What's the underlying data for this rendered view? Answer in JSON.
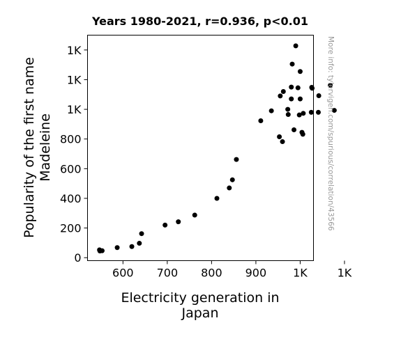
{
  "chart_data": {
    "type": "scatter",
    "title": "Years 1980-2021, r=0.936, p<0.01",
    "xlabel_lines": [
      "Electricity generation in",
      "Japan"
    ],
    "ylabel_lines": [
      "Popularity of the first name",
      "Madeleine"
    ],
    "xlim": [
      520,
      1030
    ],
    "ylim": [
      -20,
      1500
    ],
    "x_ticks": [
      {
        "value": 600,
        "label": "600"
      },
      {
        "value": 700,
        "label": "700"
      },
      {
        "value": 800,
        "label": "800"
      },
      {
        "value": 900,
        "label": "900"
      },
      {
        "value": 1000,
        "label": "1K"
      },
      {
        "value": 1100,
        "label": "1K"
      }
    ],
    "y_ticks": [
      {
        "value": 0,
        "label": "0"
      },
      {
        "value": 200,
        "label": "200"
      },
      {
        "value": 400,
        "label": "400"
      },
      {
        "value": 600,
        "label": "600"
      },
      {
        "value": 800,
        "label": "800"
      },
      {
        "value": 1000,
        "label": "1K"
      },
      {
        "value": 1200,
        "label": "1K"
      },
      {
        "value": 1400,
        "label": "1K"
      }
    ],
    "points": [
      {
        "x": 547,
        "y": 53
      },
      {
        "x": 548,
        "y": 45
      },
      {
        "x": 553,
        "y": 47
      },
      {
        "x": 587,
        "y": 68
      },
      {
        "x": 620,
        "y": 75
      },
      {
        "x": 637,
        "y": 97
      },
      {
        "x": 642,
        "y": 162
      },
      {
        "x": 695,
        "y": 220
      },
      {
        "x": 725,
        "y": 242
      },
      {
        "x": 762,
        "y": 287
      },
      {
        "x": 812,
        "y": 400
      },
      {
        "x": 840,
        "y": 470
      },
      {
        "x": 847,
        "y": 525
      },
      {
        "x": 856,
        "y": 662
      },
      {
        "x": 911,
        "y": 923
      },
      {
        "x": 935,
        "y": 990
      },
      {
        "x": 953,
        "y": 815
      },
      {
        "x": 955,
        "y": 1090
      },
      {
        "x": 960,
        "y": 782
      },
      {
        "x": 962,
        "y": 1120
      },
      {
        "x": 972,
        "y": 1000
      },
      {
        "x": 973,
        "y": 965
      },
      {
        "x": 980,
        "y": 1070
      },
      {
        "x": 980,
        "y": 1150
      },
      {
        "x": 982,
        "y": 1305
      },
      {
        "x": 986,
        "y": 862
      },
      {
        "x": 990,
        "y": 1428
      },
      {
        "x": 995,
        "y": 1145
      },
      {
        "x": 998,
        "y": 962
      },
      {
        "x": 1000,
        "y": 1070
      },
      {
        "x": 1000,
        "y": 1255
      },
      {
        "x": 1004,
        "y": 845
      },
      {
        "x": 1006,
        "y": 832
      },
      {
        "x": 1007,
        "y": 973
      },
      {
        "x": 1025,
        "y": 980
      },
      {
        "x": 1026,
        "y": 1148
      },
      {
        "x": 1027,
        "y": 1142
      },
      {
        "x": 1041,
        "y": 980
      },
      {
        "x": 1042,
        "y": 1092
      },
      {
        "x": 1068,
        "y": 1162
      },
      {
        "x": 1077,
        "y": 993
      }
    ],
    "marker_color": "#000000",
    "grid": false,
    "watermark": "More info: tylervigen.com/spurious/correlation/43566"
  }
}
